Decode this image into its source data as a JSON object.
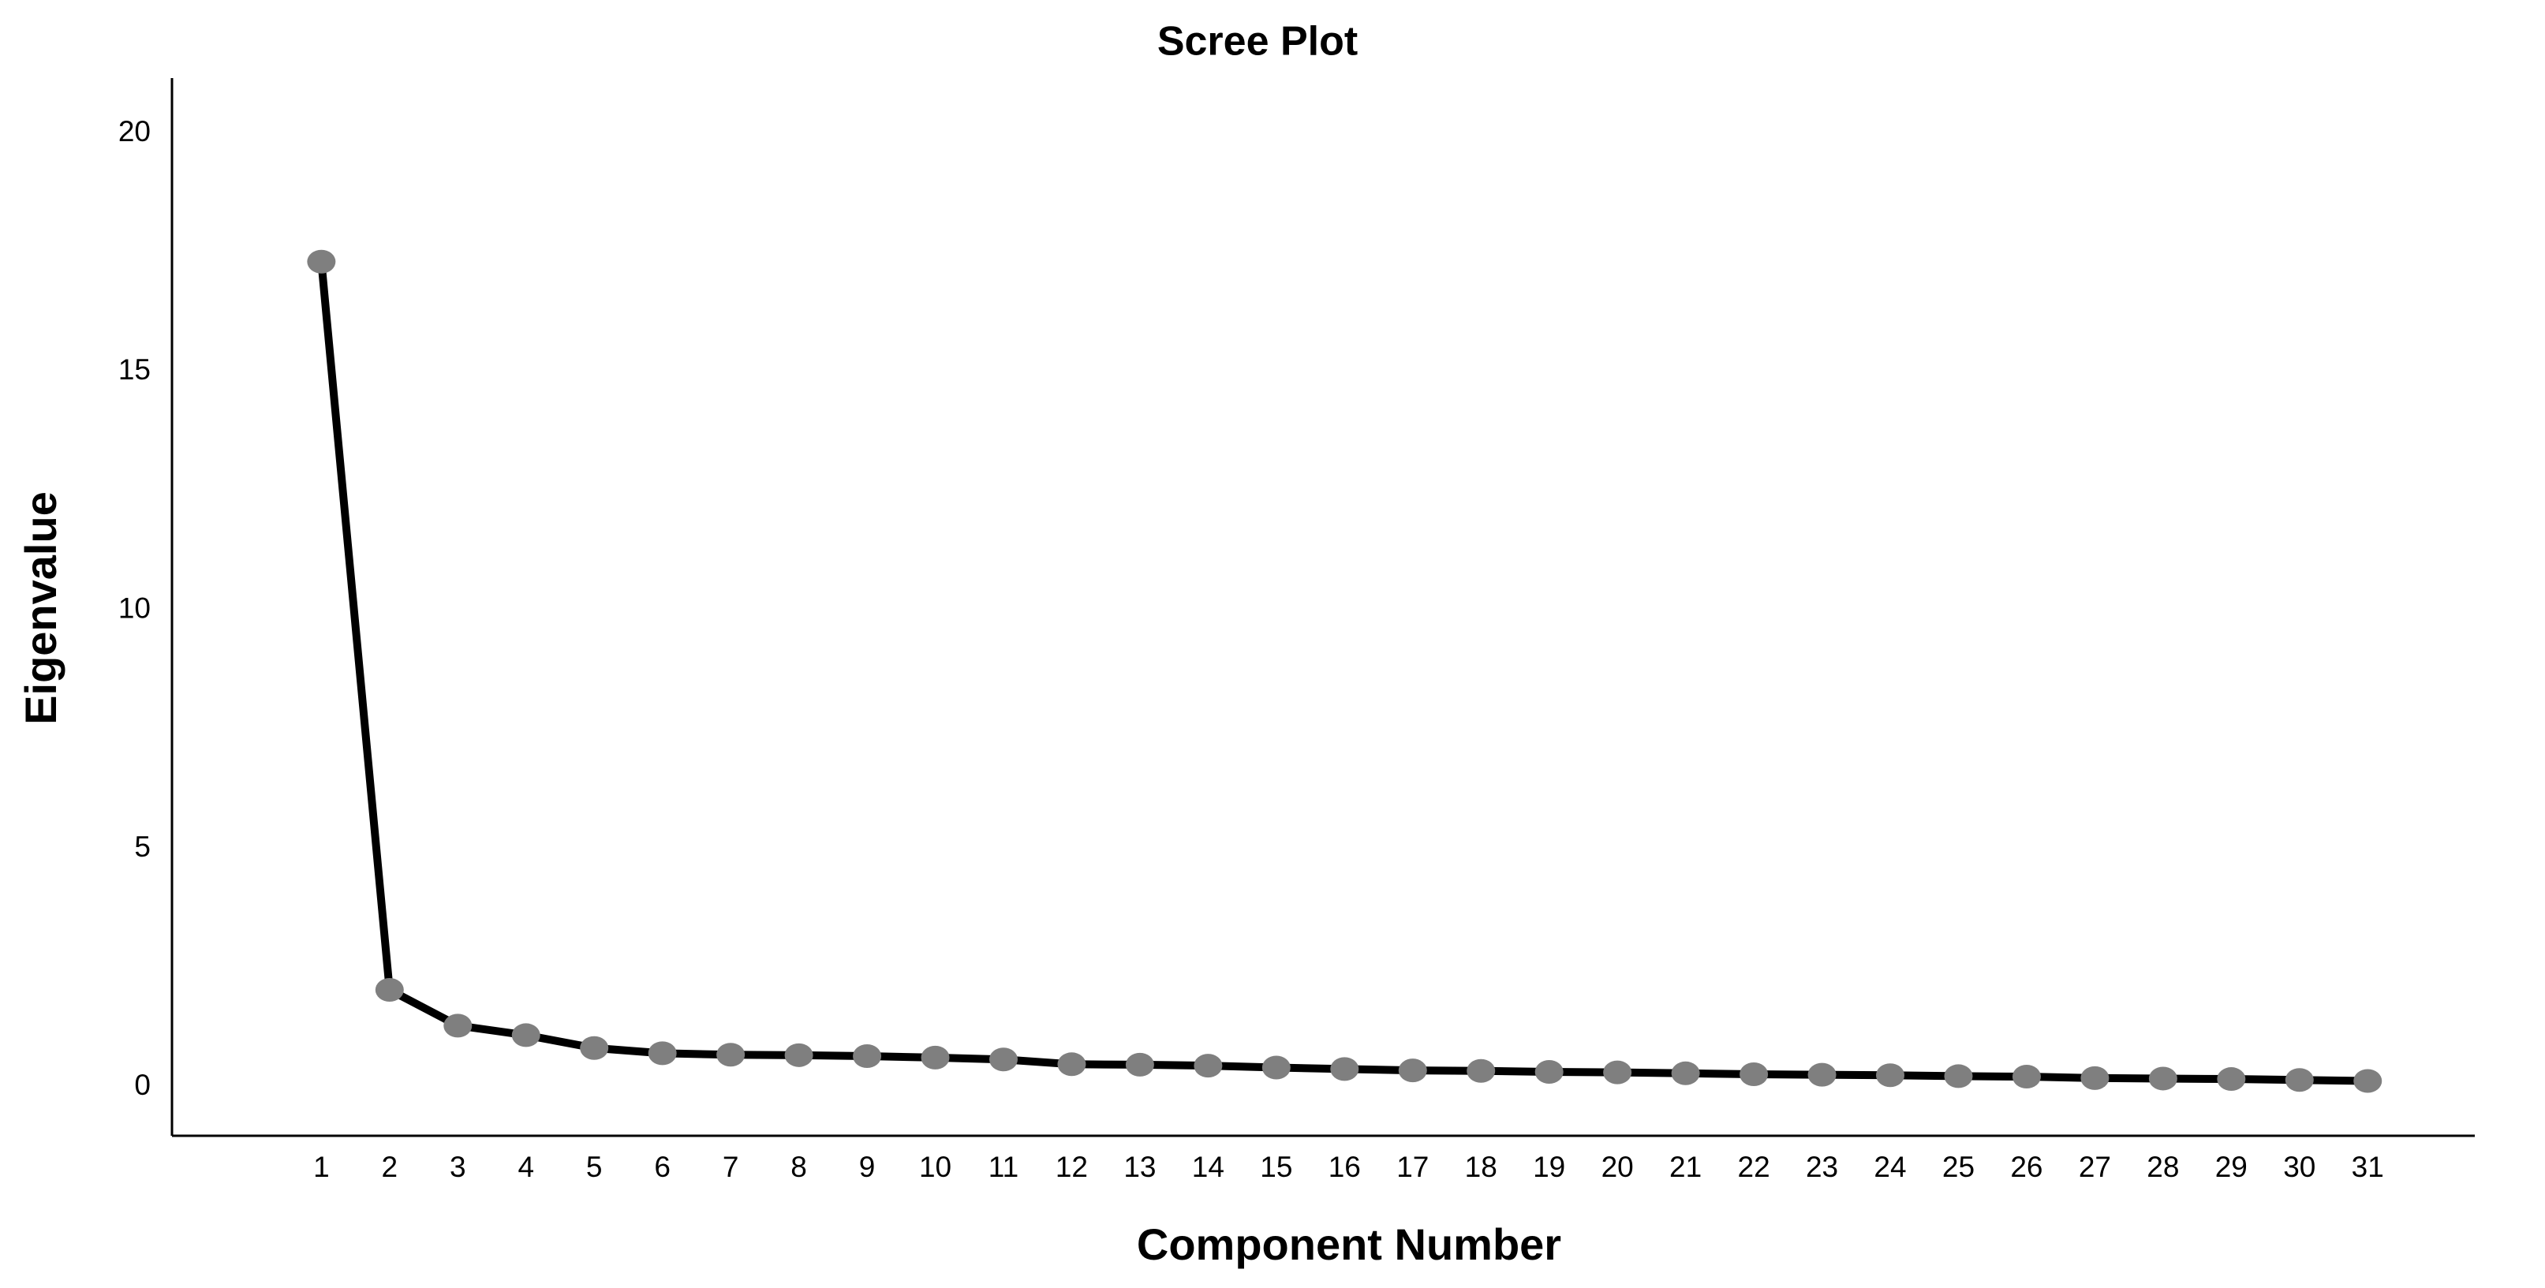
{
  "chart_data": {
    "type": "line",
    "title": "Scree Plot",
    "x_label": "Component Number",
    "y_label": "Eigenvalue",
    "x": [
      1,
      2,
      3,
      4,
      5,
      6,
      7,
      8,
      9,
      10,
      11,
      12,
      13,
      14,
      15,
      16,
      17,
      18,
      19,
      20,
      21,
      22,
      23,
      24,
      25,
      26,
      27,
      28,
      29,
      30,
      31
    ],
    "series": [
      {
        "color": "#000000",
        "marker_color": "#7f7f7f",
        "values": [
          17.31,
          2.04,
          1.29,
          1.09,
          0.82,
          0.71,
          0.68,
          0.67,
          0.65,
          0.62,
          0.58,
          0.48,
          0.47,
          0.45,
          0.41,
          0.38,
          0.35,
          0.34,
          0.32,
          0.31,
          0.29,
          0.27,
          0.26,
          0.25,
          0.23,
          0.22,
          0.19,
          0.18,
          0.17,
          0.15,
          0.13
        ]
      }
    ],
    "xlim": [
      -1.19,
      32.57
    ],
    "ylim": [
      -1.02,
      21.16
    ],
    "xticks": [
      1,
      2,
      3,
      4,
      5,
      6,
      7,
      8,
      9,
      10,
      11,
      12,
      13,
      14,
      15,
      16,
      17,
      18,
      19,
      20,
      21,
      22,
      23,
      24,
      25,
      26,
      27,
      28,
      29,
      30,
      31
    ],
    "yticks": [
      0,
      5,
      10,
      15,
      20
    ],
    "grid": false
  }
}
